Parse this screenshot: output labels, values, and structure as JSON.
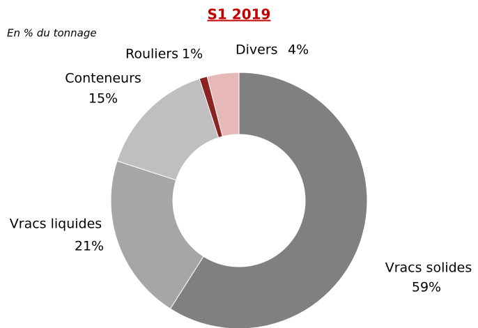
{
  "chart_data": {
    "type": "pie",
    "title": "S1 2019",
    "subtitle": "En % du tonnage",
    "categories": [
      "Vracs solides",
      "Vracs liquides",
      "Conteneurs",
      "Rouliers",
      "Divers"
    ],
    "values": [
      59,
      21,
      15,
      1,
      4
    ],
    "value_labels": [
      "59%",
      "21%",
      "15%",
      "1%",
      "4%"
    ],
    "colors": [
      "#808080",
      "#a6a6a6",
      "#bfbfbf",
      "#8b2323",
      "#e6b8b8"
    ],
    "donut": true
  }
}
